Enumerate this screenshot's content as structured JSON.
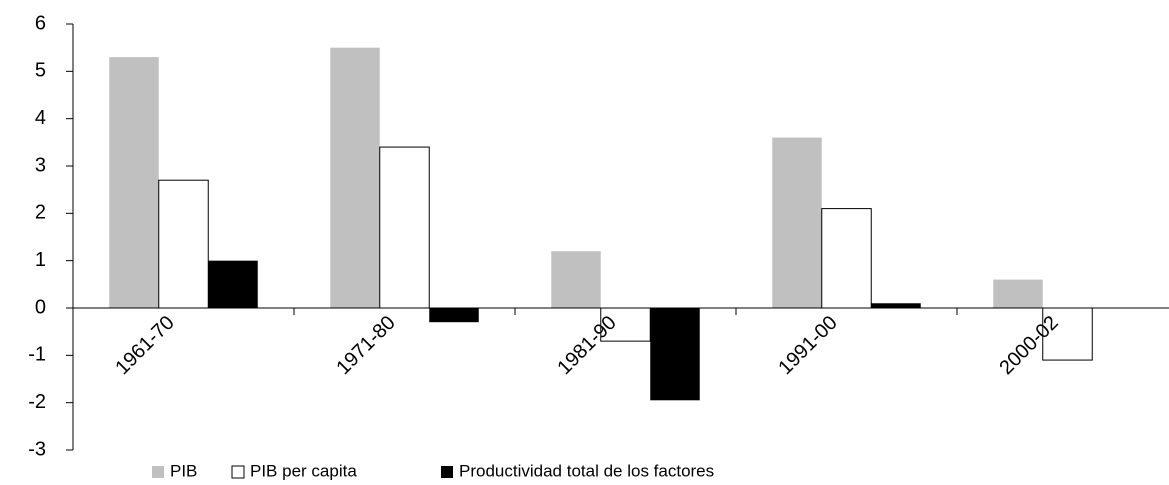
{
  "chart_data": {
    "type": "bar",
    "categories": [
      "1961-70",
      "1971-80",
      "1981-90",
      "1991-00",
      "2000-02"
    ],
    "series": [
      {
        "name": "PIB",
        "color": "#c0c0c0",
        "values": [
          5.3,
          5.5,
          1.2,
          3.6,
          0.6
        ]
      },
      {
        "name": "PIB per capita",
        "color": "#ffffff",
        "values": [
          2.7,
          3.4,
          -0.7,
          2.1,
          -1.1
        ]
      },
      {
        "name": "Productividad total de los factores",
        "color": "#000000",
        "values": [
          1.0,
          -0.3,
          -1.95,
          0.1,
          null
        ]
      }
    ],
    "ylim": [
      -3,
      6
    ],
    "yticks": [
      -3,
      -2,
      -1,
      0,
      1,
      2,
      3,
      4,
      5,
      6
    ],
    "grid": false,
    "legend": "bottom"
  }
}
